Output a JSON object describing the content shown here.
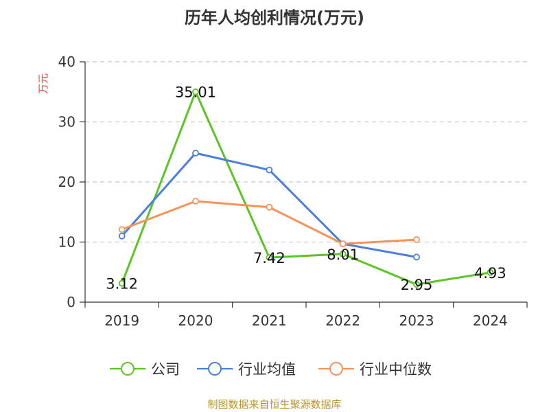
{
  "title": "历年人均创利情况(万元)",
  "source": "制图数据来自恒生聚源数据库",
  "chart_data": {
    "type": "line",
    "categories": [
      "2019",
      "2020",
      "2021",
      "2022",
      "2023",
      "2024"
    ],
    "ylabel": "万元",
    "ylim": [
      0,
      40
    ],
    "yticks": [
      "0",
      "10",
      "20",
      "30",
      "40"
    ],
    "grid": true,
    "legend_position": "bottom",
    "series": [
      {
        "name": "公司",
        "color": "#5cc425",
        "values": [
          3.12,
          35.01,
          7.42,
          8.01,
          2.95,
          4.93
        ],
        "labels": [
          "3.12",
          "35.01",
          "7.42",
          "8.01",
          "2.95",
          "4.93"
        ]
      },
      {
        "name": "行业均值",
        "color": "#4a7fdc",
        "values": [
          11.0,
          24.8,
          22.0,
          9.7,
          7.5,
          null
        ]
      },
      {
        "name": "行业中位数",
        "color": "#f6935a",
        "values": [
          12.1,
          16.8,
          15.8,
          9.7,
          10.4,
          null
        ]
      }
    ]
  }
}
